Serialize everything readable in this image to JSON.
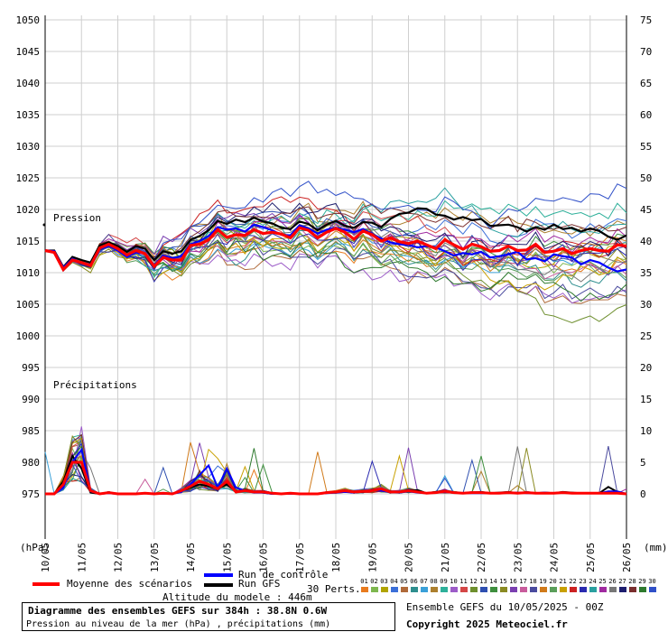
{
  "chart_data": {
    "type": "line",
    "left_axis": {
      "unit": "(hPa)",
      "ticks": [
        "1050",
        "1045",
        "1040",
        "1035",
        "1030",
        "1025",
        "1020",
        "1015",
        "1010",
        "1005",
        "1000",
        "995",
        "990",
        "985",
        "980",
        "975"
      ]
    },
    "right_axis": {
      "unit": "(mm)",
      "ticks": [
        "75",
        "70",
        "65",
        "60",
        "55",
        "50",
        "45",
        "40",
        "35",
        "30",
        "25",
        "20",
        "15",
        "10",
        "5",
        "0"
      ]
    },
    "x_labels": [
      "10/05",
      "11/05",
      "12/05",
      "13/05",
      "14/05",
      "15/05",
      "16/05",
      "17/05",
      "18/05",
      "19/05",
      "20/05",
      "21/05",
      "22/05",
      "23/05",
      "24/05",
      "25/05",
      "26/05"
    ],
    "pressure_label": "Pression",
    "precip_label": "Précipitations",
    "pressure_mean": [
      1013.5,
      1013.2,
      1010.5,
      1012.0,
      1011.6,
      1011.1,
      1013.9,
      1014.5,
      1013.8,
      1012.8,
      1013.5,
      1013.0,
      1011.0,
      1012.4,
      1012.0,
      1012.0,
      1014.3,
      1014.5,
      1015.2,
      1016.8,
      1015.6,
      1016.0,
      1015.9,
      1016.8,
      1016.2,
      1016.4,
      1016.1,
      1015.5,
      1017.1,
      1016.7,
      1015.5,
      1016.4,
      1017.0,
      1016.4,
      1015.3,
      1016.6,
      1016.0,
      1015.0,
      1015.5,
      1014.9,
      1014.6,
      1015.0,
      1014.4,
      1013.8,
      1015.2,
      1014.4,
      1013.7,
      1014.5,
      1014.1,
      1013.4,
      1013.5,
      1014.2,
      1013.5,
      1013.6,
      1014.5,
      1013.2,
      1013.4,
      1013.8,
      1013.0,
      1013.5,
      1013.8,
      1013.5,
      1013.4,
      1014.4,
      1014.2
    ],
    "pressure_control": [
      1013.5,
      1013.4,
      1010.8,
      1012.2,
      1011.5,
      1011.0,
      1013.8,
      1014.2,
      1013.5,
      1012.5,
      1013.2,
      1013.0,
      1011.2,
      1012.7,
      1012.3,
      1012.6,
      1014.5,
      1015.0,
      1015.8,
      1017.2,
      1016.8,
      1017.0,
      1016.5,
      1017.6,
      1017.2,
      1016.7,
      1016.0,
      1015.9,
      1017.5,
      1017.0,
      1016.2,
      1016.8,
      1017.1,
      1016.8,
      1016.4,
      1016.9,
      1016.1,
      1015.4,
      1014.8,
      1014.5,
      1014.4,
      1014.0,
      1014.2,
      1014.0,
      1013.4,
      1012.7,
      1013.1,
      1012.9,
      1013.3,
      1012.4,
      1012.6,
      1012.9,
      1013.3,
      1012.1,
      1012.3,
      1011.8,
      1012.9,
      1012.6,
      1012.4,
      1011.3,
      1012.0,
      1011.6,
      1010.8,
      1010.2,
      1010.5
    ],
    "pressure_gfs": [
      1013.5,
      1013.5,
      1010.9,
      1012.5,
      1012.0,
      1011.6,
      1014.3,
      1014.8,
      1014.2,
      1013.3,
      1014.2,
      1013.8,
      1012.0,
      1013.4,
      1013.0,
      1013.4,
      1015.2,
      1015.8,
      1016.7,
      1018.2,
      1017.7,
      1018.4,
      1018.0,
      1018.7,
      1018.1,
      1017.8,
      1017.1,
      1016.9,
      1018.1,
      1017.7,
      1016.7,
      1017.6,
      1018.2,
      1017.4,
      1017.1,
      1018.0,
      1017.9,
      1017.2,
      1018.5,
      1019.3,
      1019.5,
      1020.2,
      1020.1,
      1019.2,
      1019.0,
      1018.4,
      1018.8,
      1018.3,
      1018.5,
      1017.4,
      1017.5,
      1017.6,
      1017.2,
      1016.5,
      1017.2,
      1016.8,
      1017.6,
      1016.9,
      1017.1,
      1016.5,
      1017.0,
      1016.6,
      1015.7,
      1015.2,
      1015.9
    ],
    "precip_mean": [
      0,
      0,
      1.5,
      5,
      5,
      0.5,
      0,
      0.2,
      0,
      0,
      0,
      0.1,
      0,
      0.1,
      0,
      0.5,
      1.2,
      2,
      1.5,
      0.8,
      2,
      0.3,
      0.5,
      0.3,
      0.3,
      0.1,
      0,
      0.1,
      0,
      0,
      0,
      0.2,
      0.3,
      0.5,
      0.3,
      0.4,
      0.5,
      0.8,
      0.3,
      0.3,
      0.5,
      0.3,
      0.1,
      0.2,
      0.4,
      0.2,
      0.1,
      0.2,
      0.2,
      0.1,
      0.1,
      0.2,
      0.1,
      0.2,
      0.1,
      0.1,
      0.1,
      0.2,
      0.1,
      0.1,
      0.1,
      0.1,
      0.1,
      0.1,
      0
    ],
    "precip_control": [
      0,
      0,
      1,
      5,
      7,
      0.4,
      0,
      0.1,
      0,
      0,
      0,
      0.1,
      0,
      0,
      0,
      0.3,
      1.5,
      3,
      4.5,
      1,
      4,
      1,
      0.5,
      0.2,
      0.2,
      0,
      0,
      0,
      0,
      0,
      0,
      0.1,
      0.2,
      0.3,
      0.2,
      0.4,
      0.6,
      0.5,
      0.3,
      0.2,
      0.4,
      0.2,
      0.1,
      0.2,
      0.3,
      0.2,
      0.1,
      0.1,
      0.1,
      0.1,
      0.1,
      0.2,
      0.2,
      0.1,
      0.1,
      0.2,
      0.1,
      0.2,
      0.1,
      0.1,
      0.1,
      0.1,
      0.4,
      0.4,
      0
    ],
    "precip_gfs": [
      0,
      0,
      2,
      6,
      4,
      0.2,
      0,
      0.2,
      0,
      0,
      0,
      0.1,
      0,
      0.1,
      0,
      0.5,
      1,
      1.5,
      1.2,
      0.8,
      1.5,
      0.4,
      0.6,
      0.3,
      0.2,
      0,
      0,
      0.1,
      0,
      0,
      0,
      0.2,
      0.3,
      0.4,
      0.2,
      0.3,
      0.5,
      0.7,
      0.4,
      0.2,
      0.5,
      0.6,
      0.1,
      0.3,
      0.5,
      0.2,
      0.1,
      0.2,
      0.3,
      0.1,
      0.2,
      0.3,
      0.1,
      0.2,
      0.1,
      0.2,
      0.1,
      0.3,
      0.2,
      0.1,
      0.1,
      0.1,
      1.1,
      0.3,
      0
    ],
    "perturbation_colors": [
      "#E87B1F",
      "#7EB74F",
      "#B1A400",
      "#3B6FD8",
      "#B06A3A",
      "#2E8E8E",
      "#3AA0D8",
      "#AC7F2E",
      "#2EB09A",
      "#9C5CC8",
      "#D44747",
      "#6E8F2E",
      "#2E4FB0",
      "#3E8E3E",
      "#8A8A22",
      "#7A3FB0",
      "#C85C9C",
      "#4A4A9E",
      "#D07A1A",
      "#5A9E5A",
      "#C8A000",
      "#CC2222",
      "#2A2AB0",
      "#2AA0A0",
      "#A02AA0",
      "#777777",
      "#1E1E6E",
      "#7A2E2E",
      "#2E7A2E",
      "#3050C8"
    ]
  },
  "legend": {
    "mean_label": "Moyenne des scénarios",
    "control_label": "Run de contrôle",
    "gfs_label": "Run GFS",
    "perts_label": "30 Perts.",
    "pert_numbers": [
      "01",
      "02",
      "03",
      "04",
      "05",
      "06",
      "07",
      "08",
      "09",
      "10",
      "11",
      "12",
      "13",
      "14",
      "15",
      "16",
      "17",
      "18",
      "19",
      "20",
      "21",
      "22",
      "23",
      "24",
      "25",
      "26",
      "27",
      "28",
      "29",
      "30"
    ],
    "mean_color": "#FF0000",
    "control_color": "#0000FF",
    "gfs_color": "#000000",
    "altitude": "Altitude du modele : 446m"
  },
  "title": {
    "line1": "Diagramme des ensembles GEFS sur 384h : 38.8N 0.6W",
    "line2": "Pression au niveau de la mer (hPa) , précipitations (mm)"
  },
  "footer": {
    "run_info": "Ensemble GEFS du 10/05/2025 - 00Z",
    "copyright": "Copyright 2025 Meteociel.fr"
  }
}
